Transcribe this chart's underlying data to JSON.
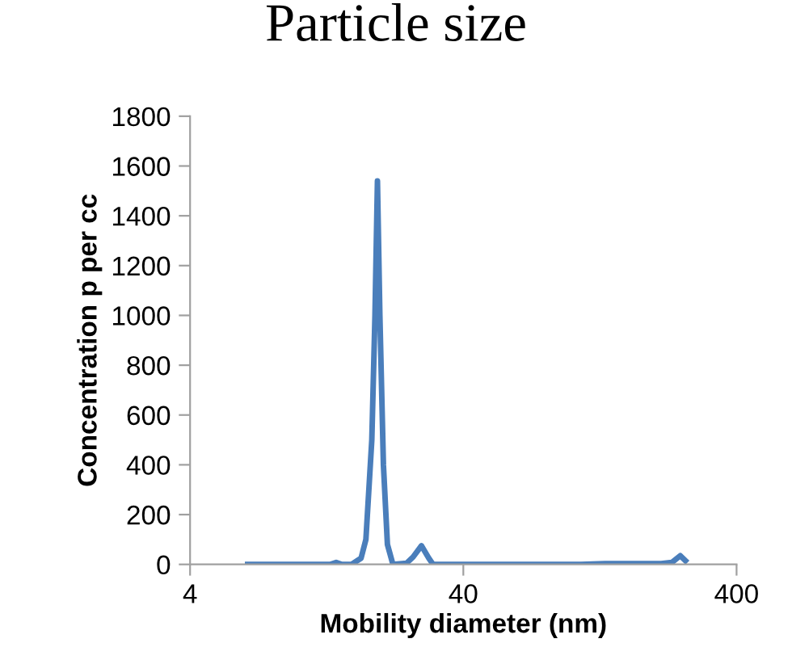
{
  "chart_data": {
    "type": "line",
    "title": "Particle size",
    "xlabel": "Mobility diameter (nm)",
    "ylabel": "Concentration p per cc",
    "log": "x",
    "xlim": [
      4,
      400
    ],
    "xticks": [
      4,
      40,
      400
    ],
    "ylim": [
      0,
      1800
    ],
    "yticks": [
      0,
      200,
      400,
      600,
      800,
      1000,
      1200,
      1400,
      1600,
      1800
    ],
    "marker": "none",
    "line_style": "solid",
    "series": [
      {
        "color": "#4a7ebb",
        "x": [
          6.5,
          13.0,
          13.7,
          14.4,
          15.6,
          16.9,
          17.6,
          18.5,
          19.0,
          19.4,
          19.8,
          20.4,
          21.1,
          22.1,
          24.8,
          26.2,
          28.1,
          29.9,
          31.0,
          107.7,
          132,
          212,
          232,
          249,
          260
        ],
        "values": [
          0,
          0,
          8,
          0,
          0,
          25,
          100,
          500,
          1000,
          1540,
          1000,
          400,
          80,
          0,
          5,
          30,
          75,
          25,
          0,
          0,
          3,
          3,
          8,
          35,
          15
        ]
      }
    ]
  }
}
